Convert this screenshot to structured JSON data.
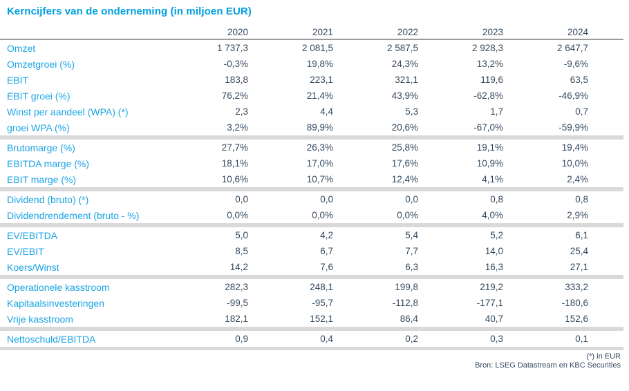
{
  "title": "Kerncijfers van de onderneming (in miljoen EUR)",
  "footnote": "(*) in EUR",
  "source": "Bron: LSEG Datastream en KBC Securities",
  "colors": {
    "accent_blue": "#00a0e1",
    "label_blue": "#1ba4e5",
    "value_navy": "#334960",
    "separator_gray": "#d9d9d9",
    "header_rule_gray": "#9b9b9b"
  },
  "chart_data": {
    "type": "table",
    "title": "Kerncijfers van de onderneming (in miljoen EUR)",
    "columns": [
      "2020",
      "2021",
      "2022",
      "2023",
      "2024"
    ],
    "sections": [
      {
        "rows": [
          {
            "label": "Omzet",
            "values": [
              "1 737,3",
              "2 081,5",
              "2 587,5",
              "2 928,3",
              "2 647,7"
            ]
          },
          {
            "label": "Omzetgroei (%)",
            "values": [
              "-0,3%",
              "19,8%",
              "24,3%",
              "13,2%",
              "-9,6%"
            ]
          },
          {
            "label": "EBIT",
            "values": [
              "183,8",
              "223,1",
              "321,1",
              "119,6",
              "63,5"
            ]
          },
          {
            "label": "EBIT groei (%)",
            "values": [
              "76,2%",
              "21,4%",
              "43,9%",
              "-62,8%",
              "-46,9%"
            ]
          },
          {
            "label": "Winst per aandeel (WPA) (*)",
            "values": [
              "2,3",
              "4,4",
              "5,3",
              "1,7",
              "0,7"
            ]
          },
          {
            "label": "groei WPA (%)",
            "values": [
              "3,2%",
              "89,9%",
              "20,6%",
              "-67,0%",
              "-59,9%"
            ]
          }
        ]
      },
      {
        "rows": [
          {
            "label": "Brutomarge (%)",
            "values": [
              "27,7%",
              "26,3%",
              "25,8%",
              "19,1%",
              "19,4%"
            ]
          },
          {
            "label": "EBITDA marge (%)",
            "values": [
              "18,1%",
              "17,0%",
              "17,6%",
              "10,9%",
              "10,0%"
            ]
          },
          {
            "label": "EBIT marge (%)",
            "values": [
              "10,6%",
              "10,7%",
              "12,4%",
              "4,1%",
              "2,4%"
            ]
          }
        ]
      },
      {
        "rows": [
          {
            "label": "Dividend (bruto) (*)",
            "values": [
              "0,0",
              "0,0",
              "0,0",
              "0,8",
              "0,8"
            ]
          },
          {
            "label": "Dividendrendement (bruto - %)",
            "values": [
              "0,0%",
              "0,0%",
              "0,0%",
              "4,0%",
              "2,9%"
            ]
          }
        ]
      },
      {
        "rows": [
          {
            "label": "EV/EBITDA",
            "values": [
              "5,0",
              "4,2",
              "5,4",
              "5,2",
              "6,1"
            ]
          },
          {
            "label": "EV/EBIT",
            "values": [
              "8,5",
              "6,7",
              "7,7",
              "14,0",
              "25,4"
            ]
          },
          {
            "label": "Koers/Winst",
            "values": [
              "14,2",
              "7,6",
              "6,3",
              "16,3",
              "27,1"
            ]
          }
        ]
      },
      {
        "rows": [
          {
            "label": "Operationele kasstroom",
            "values": [
              "282,3",
              "248,1",
              "199,8",
              "219,2",
              "333,2"
            ]
          },
          {
            "label": "Kapitaalsinvesteringen",
            "values": [
              "-99,5",
              "-95,7",
              "-112,8",
              "-177,1",
              "-180,6"
            ]
          },
          {
            "label": "Vrije kasstroom",
            "values": [
              "182,1",
              "152,1",
              "86,4",
              "40,7",
              "152,6"
            ]
          }
        ]
      },
      {
        "rows": [
          {
            "label": "Nettoschuld/EBITDA",
            "values": [
              "0,9",
              "0,4",
              "0,2",
              "0,3",
              "0,1"
            ]
          }
        ]
      }
    ]
  }
}
